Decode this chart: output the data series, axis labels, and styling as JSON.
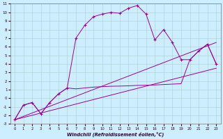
{
  "xlabel": "Windchill (Refroidissement éolien,°C)",
  "bg_color": "#cceeff",
  "grid_color": "#aacccc",
  "line_color": "#990099",
  "xlim": [
    -0.5,
    23.5
  ],
  "ylim": [
    -3,
    11
  ],
  "xticks": [
    0,
    1,
    2,
    3,
    4,
    5,
    6,
    7,
    8,
    9,
    10,
    11,
    12,
    13,
    14,
    15,
    16,
    17,
    18,
    19,
    20,
    21,
    22,
    23
  ],
  "yticks": [
    -3,
    -2,
    -1,
    0,
    1,
    2,
    3,
    4,
    5,
    6,
    7,
    8,
    9,
    10,
    11
  ],
  "main_x": [
    0,
    1,
    2,
    3,
    4,
    5,
    6,
    7,
    8,
    9,
    10,
    11,
    12,
    13,
    14,
    15,
    16,
    17,
    18,
    19,
    20,
    21,
    22,
    23
  ],
  "main_y": [
    -2.5,
    -0.8,
    -0.5,
    -1.8,
    -0.5,
    0.5,
    1.2,
    7.0,
    8.5,
    9.5,
    9.8,
    10.0,
    9.9,
    10.5,
    10.8,
    9.8,
    6.8,
    8.0,
    6.5,
    4.5,
    4.5,
    5.5,
    6.3,
    4.0
  ],
  "lower_x": [
    0,
    1,
    2,
    3,
    4,
    5,
    6,
    7,
    8,
    9,
    10,
    11,
    12,
    13,
    14,
    15,
    16,
    17,
    18,
    19,
    20,
    21,
    22,
    23
  ],
  "lower_y": [
    -2.5,
    -0.8,
    -0.5,
    -1.8,
    -0.5,
    0.5,
    1.2,
    1.1,
    1.2,
    1.3,
    1.35,
    1.4,
    1.42,
    1.45,
    1.5,
    1.52,
    1.55,
    1.6,
    1.65,
    1.7,
    4.5,
    5.5,
    6.3,
    4.0
  ],
  "line1_x": [
    0,
    23
  ],
  "line1_y": [
    -2.5,
    3.5
  ],
  "line2_x": [
    0,
    23
  ],
  "line2_y": [
    -2.5,
    6.5
  ]
}
